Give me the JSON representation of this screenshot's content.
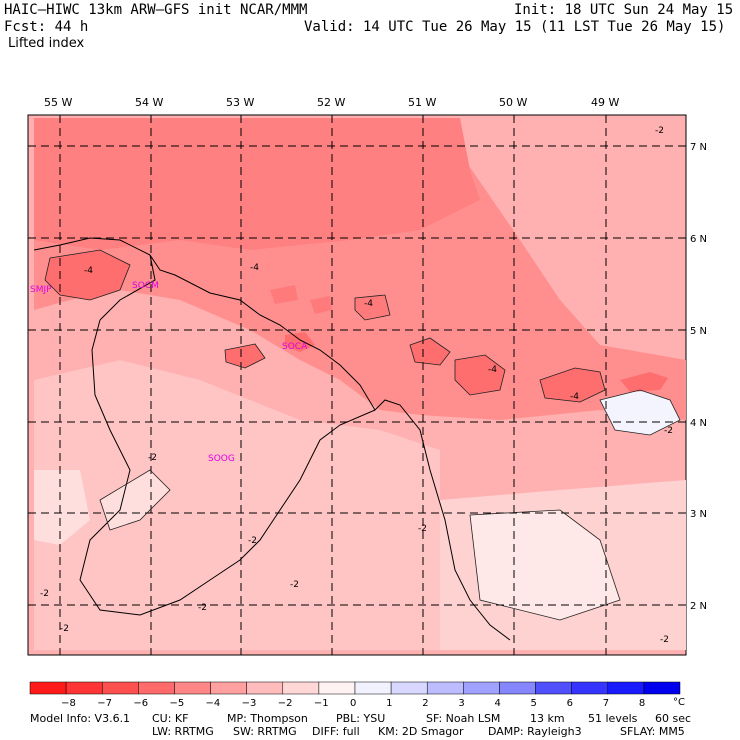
{
  "header": {
    "model_line": "HAIC–HIWC 13km ARW–GFS init   NCAR/MMM",
    "init_line": "Init: 18 UTC Sun 24 May 15",
    "fcst_line": "Fcst:    44 h",
    "valid_line": "Valid: 14 UTC Tue 26 May 15 (11 LST Tue 26 May 15)",
    "field_name": "Lifted index"
  },
  "map": {
    "lon_labels": [
      "55 W",
      "54 W",
      "53 W",
      "52 W",
      "51 W",
      "50 W",
      "49 W"
    ],
    "lat_labels": [
      "7 N",
      "6 N",
      "5 N",
      "4 N",
      "3 N",
      "2 N"
    ],
    "stations": [
      "SMJP",
      "SOCM",
      "SOCA",
      "SOOG"
    ],
    "contour_labels": [
      "-4",
      "-4",
      "-4",
      "-4",
      "-4",
      "-2",
      "-2",
      "-2",
      "-2",
      "-2",
      "-2",
      "-2",
      "-2",
      "-2",
      "-2"
    ]
  },
  "colorbar": {
    "ticks": [
      "−8",
      "−7",
      "−6",
      "−5",
      "−4",
      "−3",
      "−2",
      "−1",
      "0",
      "1",
      "2",
      "3",
      "4",
      "5",
      "6",
      "7",
      "8"
    ],
    "unit": "°C",
    "colors": [
      "#ff1a1a",
      "#ff3535",
      "#ff5050",
      "#ff6b6b",
      "#ff8686",
      "#ffa1a1",
      "#ffbcbc",
      "#ffd7d7",
      "#fff2f2",
      "#f2f2ff",
      "#d7d7ff",
      "#bcbcff",
      "#a1a1ff",
      "#8686ff",
      "#5050ff",
      "#3535ff",
      "#1a1aff",
      "#0000ee"
    ]
  },
  "footer": {
    "line1": [
      "Model Info: V3.6.1",
      "CU: KF",
      "MP: Thompson",
      "PBL: YSU",
      "SF: Noah LSM",
      "13 km",
      "51 levels",
      "60 sec"
    ],
    "line2": [
      "LW: RRTMG",
      "SW: RRTMG",
      "DIFF: full",
      "KM: 2D Smagor",
      "DAMP: Rayleigh3",
      "SFLAY: MM5"
    ]
  }
}
